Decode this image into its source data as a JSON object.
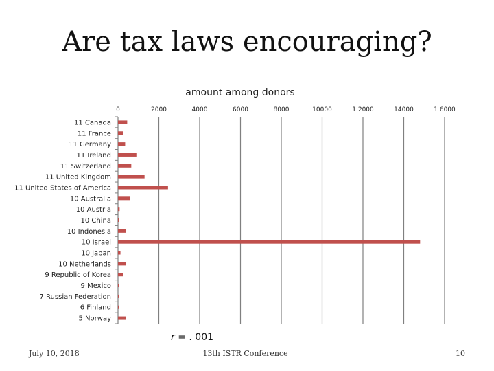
{
  "slide": {
    "title": "Are tax laws encouraging?",
    "stat_prefix": "r",
    "stat_value": "= . 001",
    "footer_date": "July 10, 2018",
    "footer_conference": "13th ISTR Conference",
    "page_number": "10"
  },
  "colors": {
    "bar": "#c0504d",
    "axis": "#808080",
    "grid": "#808080"
  },
  "chart_data": {
    "type": "bar",
    "orientation": "horizontal",
    "title": "amount among donors",
    "xlabel": "",
    "ylabel": "",
    "xlim": [
      0,
      16000
    ],
    "ticks": [
      {
        "value": 0,
        "label": "0"
      },
      {
        "value": 2000,
        "label": "2000"
      },
      {
        "value": 4000,
        "label": "4000"
      },
      {
        "value": 6000,
        "label": "6000"
      },
      {
        "value": 8000,
        "label": "8000"
      },
      {
        "value": 10000,
        "label": "10000"
      },
      {
        "value": 12000,
        "label": "1 2000"
      },
      {
        "value": 14000,
        "label": "14000"
      },
      {
        "value": 16000,
        "label": "1 6000"
      }
    ],
    "grid": true,
    "categories": [
      "11 Canada",
      "11 France",
      "11 Germany",
      "11 Ireland",
      "11 Switzerland",
      "11 United Kingdom",
      "11 United States of America",
      "10 Australia",
      "10 Austria",
      "10 China",
      "10 Indonesia",
      "10 Israel",
      "10 Japan",
      "10 Netherlands",
      "9 Republic of Korea",
      "9 Mexico",
      "7 Russian Federation",
      "6 Finland",
      "5 Norway"
    ],
    "values": [
      450,
      250,
      350,
      900,
      650,
      1300,
      2450,
      600,
      80,
      30,
      380,
      14800,
      120,
      380,
      250,
      30,
      30,
      30,
      380
    ]
  }
}
